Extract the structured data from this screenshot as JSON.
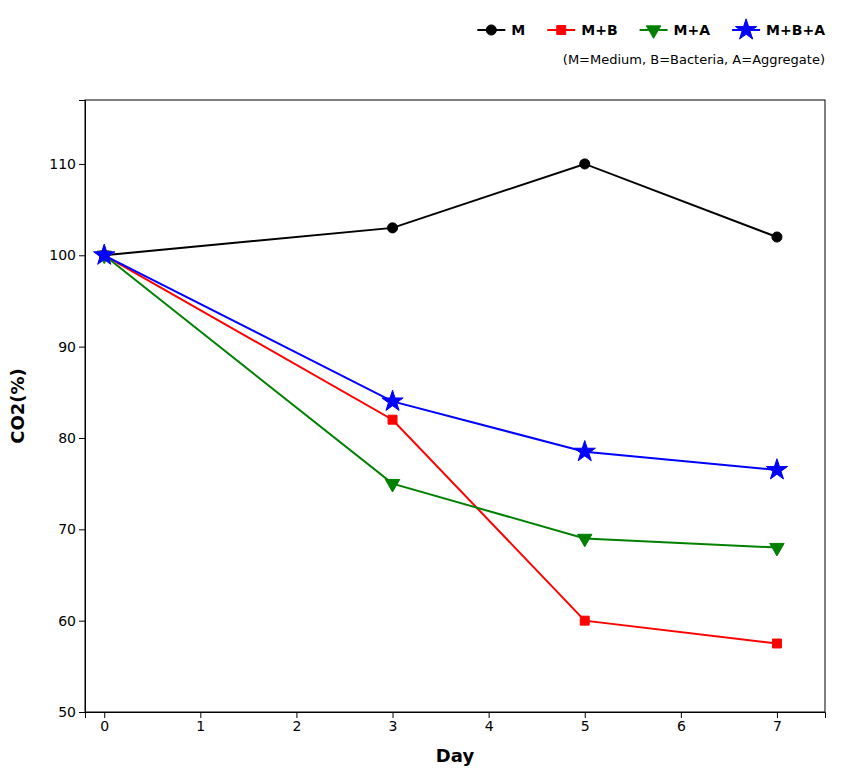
{
  "chart_data": {
    "type": "line",
    "xlabel": "Day",
    "ylabel": "CO2(%)",
    "x": [
      0,
      3,
      5,
      7
    ],
    "series": [
      {
        "name": "M",
        "color": "black",
        "marker": "circle",
        "values": [
          100,
          103,
          110,
          102
        ]
      },
      {
        "name": "M+B",
        "color": "red",
        "marker": "square",
        "values": [
          100,
          82,
          60,
          57.5
        ]
      },
      {
        "name": "M+A",
        "color": "green",
        "marker": "triangle-down",
        "values": [
          100,
          75,
          69,
          68
        ]
      },
      {
        "name": "M+B+A",
        "color": "blue",
        "marker": "star",
        "values": [
          100,
          84,
          78.5,
          76.5
        ]
      }
    ],
    "xlim": [
      -0.2,
      7.5
    ],
    "ylim": [
      50,
      117
    ],
    "xticks": [
      0,
      1,
      2,
      3,
      4,
      5,
      6,
      7
    ],
    "yticks": [
      50,
      60,
      70,
      80,
      90,
      100,
      110
    ],
    "grid": false,
    "legend": "upper-right",
    "annotations": [
      "(M=Medium, B=Bacteria, A=Aggregate)"
    ]
  }
}
